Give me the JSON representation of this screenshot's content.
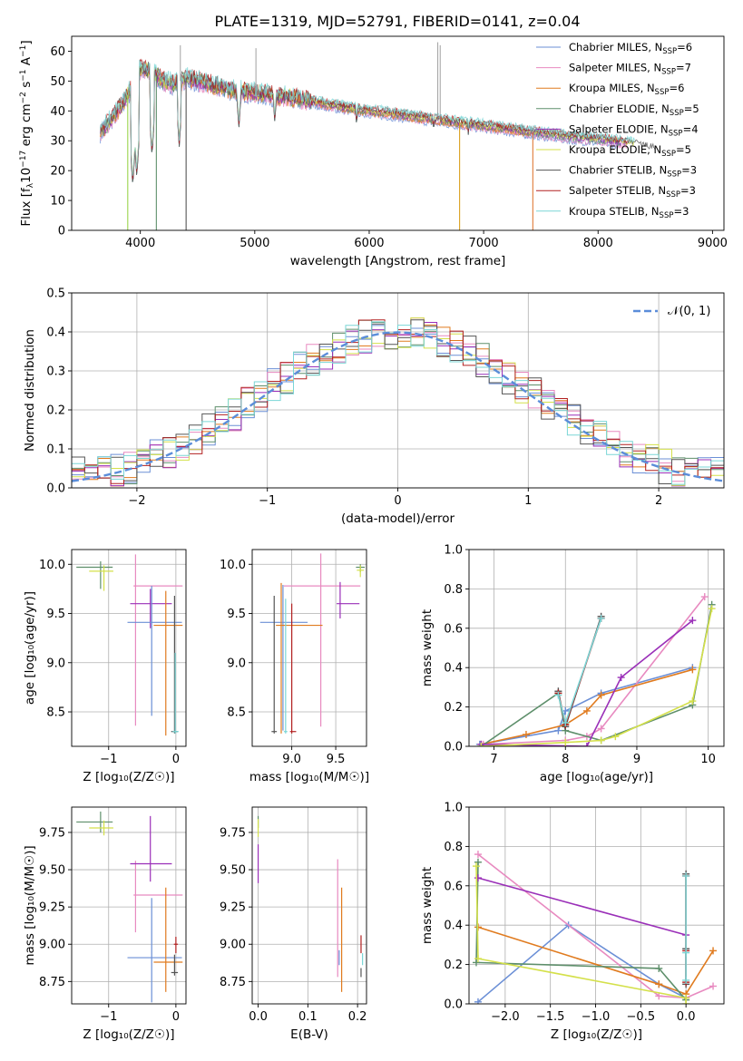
{
  "figure_title": "PLATE=1319, MJD=52791, FIBERID=0141, z=0.04",
  "chart_data": [
    {
      "id": "spectrum",
      "type": "line",
      "title": "PLATE=1319, MJD=52791, FIBERID=0141, z=0.04",
      "xlabel": "wavelength [Angstrom, rest frame]",
      "ylabel": "Flux [f_λ 10^-17 erg cm^-2 s^-1 A^-1]",
      "xlim": [
        3400,
        9100
      ],
      "ylim": [
        0,
        65
      ],
      "xticks": [
        4000,
        5000,
        6000,
        7000,
        8000,
        9000
      ],
      "yticks": [
        0,
        10,
        20,
        30,
        40,
        50,
        60
      ],
      "grid": false,
      "legend_position": "upper right",
      "continuum_x": [
        3650,
        3700,
        3800,
        3900,
        3950,
        4000,
        4100,
        4200,
        4300,
        4400,
        4600,
        4800,
        5000,
        5200,
        5400,
        5600,
        5800,
        6000,
        6200,
        6400,
        6600,
        6800,
        7000,
        7200,
        7400,
        7600,
        7800,
        8000,
        8200,
        8300,
        8400,
        8500
      ],
      "continuum_y": [
        33,
        35,
        40,
        46,
        50,
        54,
        53,
        50,
        49,
        51,
        49,
        47,
        46,
        45,
        44,
        42.5,
        41,
        40,
        39,
        38,
        37,
        36,
        35,
        34,
        33,
        32,
        31,
        30.5,
        29.5,
        29,
        28,
        27
      ],
      "absorption_dips": [
        [
          3934,
          15
        ],
        [
          3969,
          18
        ],
        [
          4102,
          25
        ],
        [
          4340,
          28
        ],
        [
          4861,
          34
        ],
        [
          5175,
          36
        ],
        [
          5890,
          35
        ],
        [
          6563,
          33
        ],
        [
          6708,
          34
        ],
        [
          6866,
          32
        ]
      ],
      "drops_to_zero": [
        [
          3890,
          "#9bd44c"
        ],
        [
          4140,
          "#5e8f6b"
        ],
        [
          4400,
          "#555555"
        ],
        [
          6790,
          "#d9a020"
        ],
        [
          7430,
          "#e07b39"
        ]
      ],
      "sky_spikes": [
        [
          4350,
          62
        ],
        [
          5010,
          61
        ],
        [
          6600,
          63
        ],
        [
          6620,
          62
        ]
      ],
      "legend": [
        {
          "label": "Chabrier MILES, N",
          "sub": "SSP",
          "eq": "=6",
          "color": "#6b8fd6"
        },
        {
          "label": "Salpeter MILES, N",
          "sub": "SSP",
          "eq": "=7",
          "color": "#e88ac0"
        },
        {
          "label": "Kroupa MILES, N",
          "sub": "SSP",
          "eq": "=6",
          "color": "#e07b1f"
        },
        {
          "label": "Chabrier ELODIE, N",
          "sub": "SSP",
          "eq": "=5",
          "color": "#5e8f6b"
        },
        {
          "label": "Salpeter ELODIE, N",
          "sub": "SSP",
          "eq": "=4",
          "color": "#9a2fb8"
        },
        {
          "label": "Kroupa ELODIE, N",
          "sub": "SSP",
          "eq": "=5",
          "color": "#d4e04a"
        },
        {
          "label": "Chabrier STELIB, N",
          "sub": "SSP",
          "eq": "=3",
          "color": "#555555"
        },
        {
          "label": "Salpeter STELIB, N",
          "sub": "SSP",
          "eq": "=3",
          "color": "#b22020"
        },
        {
          "label": "Kroupa STELIB, N",
          "sub": "SSP",
          "eq": "=3",
          "color": "#7ad6d6"
        }
      ]
    },
    {
      "id": "residuals",
      "type": "line",
      "xlabel": "(data-model)/error",
      "ylabel": "Normed distribution",
      "xlim": [
        -2.5,
        2.5
      ],
      "ylim": [
        0,
        0.5
      ],
      "xticks": [
        -2,
        -1,
        0,
        1,
        2
      ],
      "yticks": [
        0.0,
        0.1,
        0.2,
        0.3,
        0.4,
        0.5
      ],
      "grid": true,
      "legend_position": "upper right",
      "legend": [
        {
          "label": "𝒩(0, 1)",
          "color": "#5b8dd9"
        }
      ],
      "bins": 50
    },
    {
      "id": "age-vs-Z",
      "type": "scatter",
      "xlabel": "Z [log₁₀(Z/Z☉)]",
      "ylabel": "age  [log₁₀(age/yr)]",
      "xlim": [
        -1.55,
        0.15
      ],
      "ylim": [
        8.15,
        10.15
      ],
      "xticks": [
        -1,
        0
      ],
      "yticks": [
        8.5,
        9.0,
        9.5,
        10.0
      ],
      "grid": true,
      "points": [
        {
          "x": -1.12,
          "y": 9.97,
          "xerr": [
            0.36,
            0.18
          ],
          "yerr": [
            0.22,
            0.06
          ],
          "color": "#5e8f6b"
        },
        {
          "x": -1.07,
          "y": 9.93,
          "xerr": [
            0.22,
            0.14
          ],
          "yerr": [
            0.2,
            0.06
          ],
          "color": "#d4e04a"
        },
        {
          "x": -0.6,
          "y": 9.78,
          "xerr": [
            0.03,
            0.7
          ],
          "yerr": [
            1.42,
            0.32
          ],
          "color": "#e88ac0"
        },
        {
          "x": -0.38,
          "y": 9.6,
          "xerr": [
            0.3,
            0.32
          ],
          "yerr": [
            0.25,
            0.15
          ],
          "color": "#9a2fb8"
        },
        {
          "x": -0.36,
          "y": 9.41,
          "xerr": [
            0.36,
            0.45
          ],
          "yerr": [
            0.95,
            0.37
          ],
          "color": "#6b8fd6"
        },
        {
          "x": -0.15,
          "y": 9.38,
          "xerr": [
            0.18,
            0.25
          ],
          "yerr": [
            1.12,
            0.35
          ],
          "color": "#e07b1f"
        },
        {
          "x": -0.02,
          "y": 8.3,
          "xerr": [
            0.05,
            0.05
          ],
          "yerr": [
            0.02,
            1.38
          ],
          "color": "#555555"
        },
        {
          "x": -0.01,
          "y": 8.3,
          "xerr": [
            0.04,
            0.05
          ],
          "yerr": [
            0.02,
            0.8
          ],
          "color": "#7ad6d6"
        }
      ]
    },
    {
      "id": "age-vs-mass",
      "type": "scatter",
      "xlabel": "mass [log₁₀(M/M☉)]",
      "ylabel": "",
      "xlim": [
        8.55,
        9.85
      ],
      "ylim": [
        8.15,
        10.15
      ],
      "xticks": [
        9.0,
        9.5
      ],
      "yticks": [
        8.5,
        9.0,
        9.5,
        10.0
      ],
      "grid": true,
      "points": [
        {
          "x": 9.78,
          "y": 9.97,
          "xerr": [
            0.05,
            0.05
          ],
          "yerr": [
            0.05,
            0.03
          ],
          "color": "#5e8f6b"
        },
        {
          "x": 9.78,
          "y": 9.94,
          "xerr": [
            0.04,
            0.04
          ],
          "yerr": [
            0.07,
            0.05
          ],
          "color": "#d4e04a"
        },
        {
          "x": 9.33,
          "y": 9.78,
          "xerr": [
            0.42,
            0.45
          ],
          "yerr": [
            1.43,
            0.33
          ],
          "color": "#e88ac0"
        },
        {
          "x": 9.55,
          "y": 9.6,
          "xerr": [
            0.04,
            0.22
          ],
          "yerr": [
            0.15,
            0.22
          ],
          "color": "#9a2fb8"
        },
        {
          "x": 8.9,
          "y": 9.41,
          "xerr": [
            0.26,
            0.28
          ],
          "yerr": [
            1.1,
            0.38
          ],
          "color": "#6b8fd6"
        },
        {
          "x": 8.88,
          "y": 9.38,
          "xerr": [
            0.06,
            0.47
          ],
          "yerr": [
            1.1,
            0.43
          ],
          "color": "#e07b1f"
        },
        {
          "x": 8.8,
          "y": 8.3,
          "xerr": [
            0.03,
            0.03
          ],
          "yerr": [
            0.02,
            1.38
          ],
          "color": "#555555"
        },
        {
          "x": 9.0,
          "y": 8.3,
          "xerr": [
            0.02,
            0.05
          ],
          "yerr": [
            0.02,
            1.3
          ],
          "color": "#b22020"
        },
        {
          "x": 8.93,
          "y": 8.3,
          "xerr": [
            0.02,
            0.02
          ],
          "yerr": [
            0.02,
            1.35
          ],
          "color": "#7ad6d6"
        }
      ]
    },
    {
      "id": "massweight-vs-age",
      "type": "line",
      "xlabel": "age  [log₁₀(age/yr)]",
      "ylabel": "mass weight",
      "xlim": [
        6.65,
        10.22
      ],
      "ylim": [
        0,
        1
      ],
      "xticks": [
        7,
        8,
        9,
        10
      ],
      "yticks": [
        0.0,
        0.2,
        0.4,
        0.6,
        0.8,
        1.0
      ],
      "grid": true,
      "series": [
        {
          "color": "#6b8fd6",
          "x": [
            6.8,
            7.9,
            8.0,
            8.5,
            9.78
          ],
          "y": [
            0.01,
            0.08,
            0.18,
            0.27,
            0.4
          ]
        },
        {
          "color": "#e88ac0",
          "x": [
            6.85,
            8.0,
            8.3,
            8.5,
            9.95
          ],
          "y": [
            0.01,
            0.03,
            0.05,
            0.09,
            0.76
          ]
        },
        {
          "color": "#e07b1f",
          "x": [
            6.82,
            7.45,
            8.0,
            8.3,
            8.5,
            9.78
          ],
          "y": [
            0.01,
            0.06,
            0.11,
            0.18,
            0.26,
            0.39
          ]
        },
        {
          "color": "#5e8f6b",
          "x": [
            6.82,
            7.9,
            8.0,
            8.5,
            9.78,
            10.05
          ],
          "y": [
            0.0,
            0.27,
            0.08,
            0.03,
            0.21,
            0.72
          ]
        },
        {
          "color": "#9a2fb8",
          "x": [
            6.82,
            8.3,
            8.78,
            9.78
          ],
          "y": [
            0.01,
            0.0,
            0.35,
            0.64
          ]
        },
        {
          "color": "#d4e04a",
          "x": [
            6.82,
            8.0,
            8.5,
            8.7,
            9.78,
            10.05
          ],
          "y": [
            0.0,
            0.02,
            0.03,
            0.05,
            0.23,
            0.7
          ]
        },
        {
          "color": "#555555",
          "x": [
            7.9,
            8.0,
            8.5
          ],
          "y": [
            0.28,
            0.1,
            0.66
          ]
        },
        {
          "color": "#b22020",
          "x": [
            7.9,
            8.0,
            8.5
          ],
          "y": [
            0.27,
            0.11,
            0.65
          ]
        },
        {
          "color": "#7ad6d6",
          "x": [
            7.9,
            8.0,
            8.5
          ],
          "y": [
            0.26,
            0.12,
            0.65
          ]
        }
      ]
    },
    {
      "id": "mass-vs-Z",
      "type": "scatter",
      "xlabel": "Z [log₁₀(Z/Z☉)]",
      "ylabel": "mass [log₁₀(M/M☉)]",
      "xlim": [
        -1.55,
        0.15
      ],
      "ylim": [
        8.6,
        9.92
      ],
      "xticks": [
        -1,
        0
      ],
      "yticks": [
        8.75,
        9.0,
        9.25,
        9.5,
        9.75
      ],
      "grid": true,
      "points": [
        {
          "x": -1.12,
          "y": 9.82,
          "xerr": [
            0.36,
            0.18
          ],
          "yerr": [
            0.07,
            0.07
          ],
          "color": "#5e8f6b"
        },
        {
          "x": -1.07,
          "y": 9.78,
          "xerr": [
            0.22,
            0.14
          ],
          "yerr": [
            0.05,
            0.05
          ],
          "color": "#d4e04a"
        },
        {
          "x": -0.6,
          "y": 9.33,
          "xerr": [
            0.03,
            0.7
          ],
          "yerr": [
            0.25,
            0.23
          ],
          "color": "#e88ac0"
        },
        {
          "x": -0.38,
          "y": 9.54,
          "xerr": [
            0.3,
            0.32
          ],
          "yerr": [
            0.12,
            0.32
          ],
          "color": "#9a2fb8"
        },
        {
          "x": -0.36,
          "y": 8.91,
          "xerr": [
            0.36,
            0.45
          ],
          "yerr": [
            0.3,
            0.4
          ],
          "color": "#6b8fd6"
        },
        {
          "x": -0.15,
          "y": 8.88,
          "xerr": [
            0.18,
            0.25
          ],
          "yerr": [
            0.2,
            0.5
          ],
          "color": "#e07b1f"
        },
        {
          "x": -0.02,
          "y": 8.81,
          "xerr": [
            0.05,
            0.05
          ],
          "yerr": [
            0.02,
            0.12
          ],
          "color": "#555555"
        },
        {
          "x": 0.0,
          "y": 9.0,
          "xerr": [
            0.03,
            0.03
          ],
          "yerr": [
            0.06,
            0.05
          ],
          "color": "#b22020"
        }
      ]
    },
    {
      "id": "mass-vs-ebv",
      "type": "scatter",
      "xlabel": "E(B-V)",
      "ylabel": "",
      "xlim": [
        -0.012,
        0.218
      ],
      "ylim": [
        8.6,
        9.92
      ],
      "xticks": [
        0.0,
        0.1,
        0.2
      ],
      "yticks": [
        8.75,
        9.0,
        9.25,
        9.5,
        9.75
      ],
      "grid": true,
      "points": [
        {
          "x": 0.0,
          "y": 9.82,
          "xerr": [
            0.0,
            0.0
          ],
          "yerr": [
            0.04,
            0.04
          ],
          "color": "#5e8f6b"
        },
        {
          "x": 0.0,
          "y": 9.78,
          "xerr": [
            0.0,
            0.0
          ],
          "yerr": [
            0.06,
            0.06
          ],
          "color": "#d4e04a"
        },
        {
          "x": 0.0,
          "y": 9.54,
          "xerr": [
            0.0,
            0.0
          ],
          "yerr": [
            0.13,
            0.13
          ],
          "color": "#9a2fb8"
        },
        {
          "x": 0.16,
          "y": 9.33,
          "xerr": [
            0.0,
            0.0
          ],
          "yerr": [
            0.55,
            0.24
          ],
          "color": "#e88ac0"
        },
        {
          "x": 0.163,
          "y": 8.91,
          "xerr": [
            0.0,
            0.0
          ],
          "yerr": [
            0.05,
            0.05
          ],
          "color": "#6b8fd6"
        },
        {
          "x": 0.168,
          "y": 8.88,
          "xerr": [
            0.0,
            0.0
          ],
          "yerr": [
            0.2,
            0.5
          ],
          "color": "#e07b1f"
        },
        {
          "x": 0.207,
          "y": 9.0,
          "xerr": [
            0.0,
            0.0
          ],
          "yerr": [
            0.06,
            0.06
          ],
          "color": "#b22020"
        },
        {
          "x": 0.207,
          "y": 8.81,
          "xerr": [
            0.0,
            0.0
          ],
          "yerr": [
            0.03,
            0.03
          ],
          "color": "#555555"
        },
        {
          "x": 0.21,
          "y": 8.9,
          "xerr": [
            0.0,
            0.0
          ],
          "yerr": [
            0.04,
            0.04
          ],
          "color": "#7ad6d6"
        }
      ]
    },
    {
      "id": "massweight-vs-Z",
      "type": "line",
      "xlabel": "Z [log₁₀(Z/Z☉)]",
      "ylabel": "mass weight",
      "xlim": [
        -2.4,
        0.42
      ],
      "ylim": [
        0,
        1
      ],
      "xticks": [
        -2.0,
        -1.5,
        -1.0,
        -0.5,
        0.0
      ],
      "yticks": [
        0.0,
        0.2,
        0.4,
        0.6,
        0.8,
        1.0
      ],
      "grid": true,
      "series": [
        {
          "color": "#6b8fd6",
          "x": [
            -2.3,
            -1.3,
            -0.3,
            0.0
          ],
          "y": [
            0.01,
            0.4,
            0.1,
            0.03
          ]
        },
        {
          "color": "#e88ac0",
          "x": [
            -2.3,
            -0.3,
            0.0,
            0.3
          ],
          "y": [
            0.76,
            0.04,
            0.03,
            0.09
          ]
        },
        {
          "color": "#e07b1f",
          "x": [
            -2.3,
            -0.3,
            0.0,
            0.3
          ],
          "y": [
            0.39,
            0.1,
            0.05,
            0.27
          ]
        },
        {
          "color": "#5e8f6b",
          "x": [
            -2.3,
            -2.32,
            -0.3,
            0.0
          ],
          "y": [
            0.72,
            0.21,
            0.18,
            0.02
          ]
        },
        {
          "color": "#9a2fb8",
          "x": [
            -2.3,
            0.0
          ],
          "y": [
            0.64,
            0.35
          ]
        },
        {
          "color": "#d4e04a",
          "x": [
            -2.32,
            -2.3,
            0.0,
            0.0
          ],
          "y": [
            0.7,
            0.23,
            0.03,
            0.0
          ]
        },
        {
          "color": "#555555",
          "x": [
            0.0,
            0.0,
            0.0
          ],
          "y": [
            0.28,
            0.1,
            0.66
          ]
        },
        {
          "color": "#b22020",
          "x": [
            0.0,
            0.0,
            0.0
          ],
          "y": [
            0.27,
            0.11,
            0.65
          ]
        },
        {
          "color": "#7ad6d6",
          "x": [
            0.0,
            0.0,
            0.0
          ],
          "y": [
            0.26,
            0.12,
            0.65
          ]
        }
      ]
    }
  ]
}
